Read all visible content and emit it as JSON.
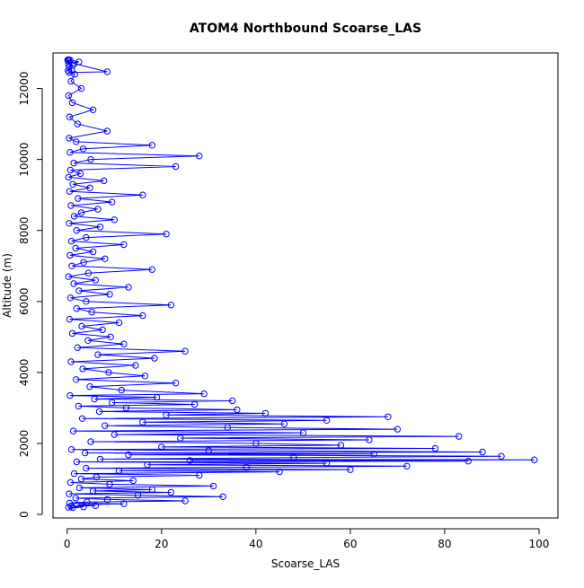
{
  "chart_data": {
    "type": "scatter",
    "title": "ATOM4 Northbound Scoarse_LAS",
    "xlabel": "Scoarse_LAS",
    "ylabel": "Altitude (m)",
    "xlim": [
      -3,
      104
    ],
    "ylim": [
      -100,
      13000
    ],
    "x_ticks": [
      0,
      20,
      40,
      60,
      80,
      100
    ],
    "y_ticks": [
      0,
      2000,
      4000,
      6000,
      8000,
      10000,
      12000
    ],
    "x_tick_labels": [
      "0",
      "20",
      "40",
      "60",
      "80",
      "100"
    ],
    "y_tick_labels": [
      "0",
      "2000",
      "4000",
      "6000",
      "8000",
      "10000",
      "12000"
    ],
    "grid": false,
    "legend": "none",
    "marker": "open-circle",
    "connected": true,
    "color": "#0000ff",
    "series": [
      {
        "x": [
          0.3,
          1.2,
          3.5,
          0.8,
          6.0,
          2.1,
          12.0,
          0.5,
          4.2,
          25.0,
          8.5,
          1.8,
          33.0,
          15.0,
          0.4,
          22.0,
          5.5,
          18.0,
          2.6,
          31.0,
          9.0,
          0.7,
          14.0,
          3.0,
          6.2,
          28.0,
          1.5,
          45.0,
          11.0,
          60.0,
          4.0,
          38.0,
          72.0,
          17.0,
          55.0,
          2.0,
          85.0,
          26.0,
          99.0,
          7.0,
          48.0,
          92.0,
          13.0,
          65.0,
          3.8,
          88.0,
          30.0,
          0.9,
          78.0,
          20.0,
          58.0,
          40.0,
          5.0,
          64.0,
          24.0,
          83.0,
          10.0,
          50.0,
          1.3,
          70.0,
          34.0,
          8.0,
          46.0,
          16.0,
          55.0,
          3.2,
          68.0,
          21.0,
          42.0,
          6.8,
          36.0,
          12.5,
          2.4,
          27.0,
          9.5,
          35.0,
          5.8,
          19.0,
          0.6,
          29.0,
          11.5,
          4.8,
          23.0,
          1.9,
          16.5,
          8.8,
          3.3,
          14.5,
          0.8,
          18.5,
          6.5,
          25.0,
          2.2,
          12.0,
          4.4,
          9.2,
          1.1,
          7.5,
          3.1,
          11.0,
          0.5,
          16.0,
          5.2,
          2.0,
          22.0,
          4.0,
          0.7,
          9.0,
          2.5,
          13.0,
          1.4,
          6.0,
          0.3,
          4.5,
          18.0,
          1.0,
          3.5,
          8.0,
          0.6,
          5.5,
          1.8,
          12.0,
          0.9,
          4.0,
          21.0,
          2.0,
          7.0,
          0.4,
          10.0,
          1.5,
          3.0,
          6.5,
          0.8,
          9.5,
          2.3,
          16.0,
          0.5,
          4.8,
          1.2,
          7.8,
          0.3,
          2.8,
          0.7,
          23.0,
          1.4,
          5.0,
          28.0,
          0.6,
          3.4,
          18.0,
          1.9,
          0.4,
          8.5,
          2.2,
          0.5,
          5.5,
          1.1,
          0.3,
          3.0,
          0.8,
          1.6,
          0.2,
          0.4,
          1.2,
          0.3,
          2.5,
          0.2,
          1.0,
          0.4,
          8.5,
          1.5,
          0.3,
          0.6,
          0.2,
          0.3,
          0.1,
          0.2
        ],
        "y": [
          200,
          190,
          210,
          230,
          250,
          270,
          300,
          320,
          350,
          380,
          420,
          460,
          500,
          540,
          580,
          620,
          660,
          700,
          750,
          800,
          850,
          900,
          950,
          1000,
          1050,
          1100,
          1150,
          1200,
          1230,
          1260,
          1300,
          1330,
          1360,
          1400,
          1440,
          1480,
          1500,
          1520,
          1540,
          1560,
          1600,
          1640,
          1680,
          1700,
          1730,
          1760,
          1800,
          1830,
          1860,
          1900,
          1950,
          2000,
          2050,
          2100,
          2150,
          2200,
          2250,
          2300,
          2350,
          2400,
          2450,
          2500,
          2550,
          2600,
          2650,
          2700,
          2750,
          2800,
          2850,
          2900,
          2950,
          3000,
          3050,
          3100,
          3150,
          3200,
          3250,
          3300,
          3350,
          3400,
          3500,
          3600,
          3700,
          3800,
          3900,
          4000,
          4100,
          4200,
          4300,
          4400,
          4500,
          4600,
          4700,
          4800,
          4900,
          5000,
          5100,
          5200,
          5300,
          5400,
          5500,
          5600,
          5700,
          5800,
          5900,
          6000,
          6100,
          6200,
          6300,
          6400,
          6500,
          6600,
          6700,
          6800,
          6900,
          7000,
          7100,
          7200,
          7300,
          7400,
          7500,
          7600,
          7700,
          7800,
          7900,
          8000,
          8100,
          8200,
          8300,
          8400,
          8500,
          8600,
          8700,
          8800,
          8900,
          9000,
          9100,
          9200,
          9300,
          9400,
          9500,
          9600,
          9700,
          9800,
          9900,
          10000,
          10100,
          10200,
          10300,
          10400,
          10500,
          10600,
          10800,
          11000,
          11200,
          11400,
          11600,
          11800,
          12000,
          12200,
          12400,
          12500,
          12600,
          12650,
          12700,
          12750,
          12800,
          12500,
          12450,
          12470,
          12700,
          12780,
          12800,
          12800,
          12810,
          12800,
          12790
        ]
      }
    ]
  }
}
